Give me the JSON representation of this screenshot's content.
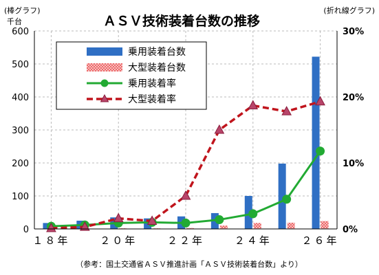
{
  "chart_data": {
    "type": "bar",
    "title": "ＡＳＶ技術装着台数の推移",
    "left_axis_note": "(棒グラフ)",
    "left_axis_unit": "千台",
    "right_axis_note": "(折れ線グラフ)",
    "source": "（参考：国土交通省ＡＳＶ推進計画「ＡＳＶ技術装着台数」より）",
    "x_tick_labels": [
      "１８年",
      "２０年",
      "２２年",
      "２４年",
      "２６年"
    ],
    "x_tick_positions": [
      18,
      20,
      22,
      24,
      26
    ],
    "x": [
      18,
      19,
      20,
      21,
      22,
      23,
      24,
      25,
      26
    ],
    "ylim_left": [
      0,
      600
    ],
    "yticks_left": [
      "0",
      "100",
      "200",
      "300",
      "400",
      "500",
      "600"
    ],
    "ylim_right": [
      0,
      30
    ],
    "yticks_right": [
      "0%",
      "10%",
      "20%",
      "30%"
    ],
    "grid": true,
    "legend_position": "top-left",
    "series": [
      {
        "name": "乗用装着台数",
        "kind": "bar",
        "axis": "left",
        "color": "#2f6fc4",
        "values": [
          18,
          25,
          35,
          32,
          38,
          48,
          100,
          198,
          522
        ]
      },
      {
        "name": "大型装着台数",
        "kind": "bar",
        "axis": "left",
        "color": "#e8282b",
        "values": [
          1,
          1,
          2,
          2,
          3,
          10,
          18,
          19,
          24
        ]
      },
      {
        "name": "乗用装着率",
        "kind": "line",
        "axis": "right",
        "color": "#22aa33",
        "values": [
          0.4,
          0.6,
          0.9,
          1.0,
          0.9,
          1.4,
          2.3,
          4.5,
          11.8
        ]
      },
      {
        "name": "大型装着率",
        "kind": "line",
        "axis": "right",
        "color": "#c0141c",
        "values": [
          0.1,
          0.3,
          1.6,
          1.2,
          5.0,
          15.0,
          18.7,
          17.8,
          19.3
        ]
      }
    ]
  }
}
